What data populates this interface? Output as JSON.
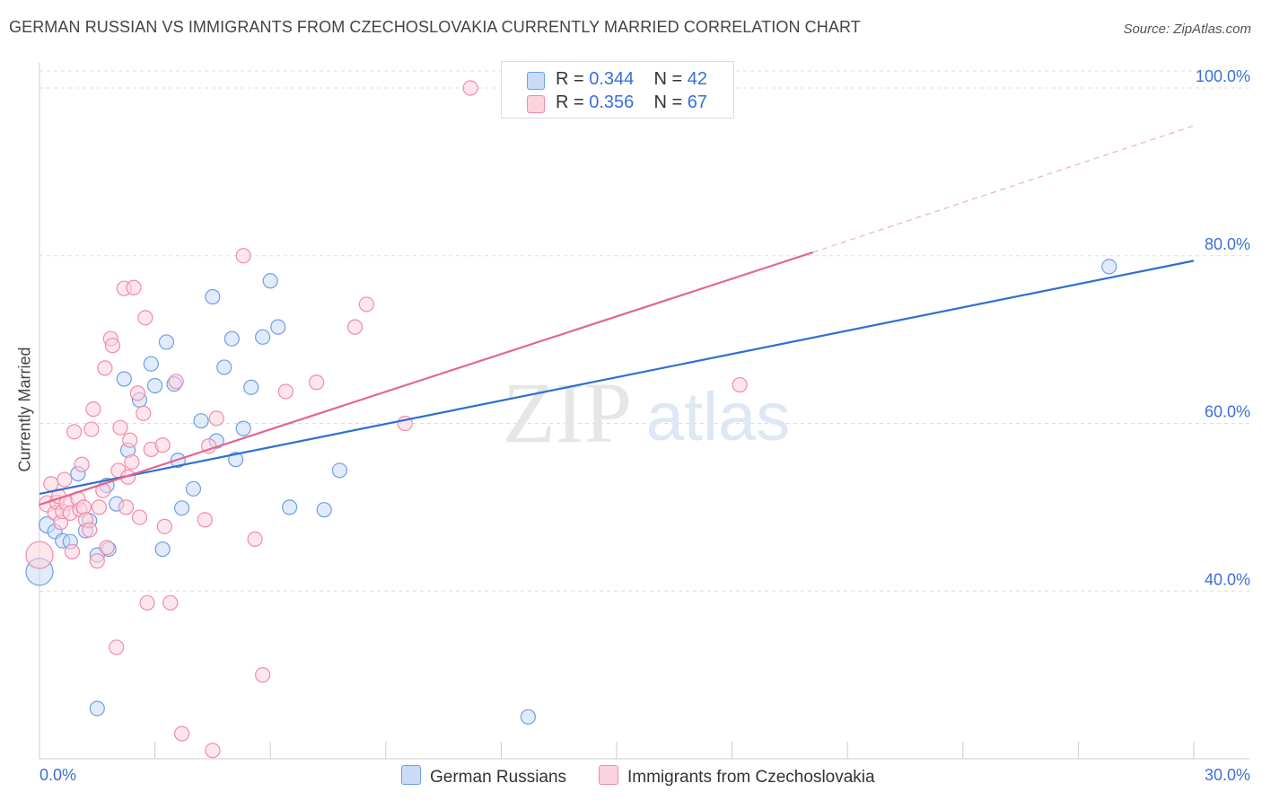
{
  "title": "GERMAN RUSSIAN VS IMMIGRANTS FROM CZECHOSLOVAKIA CURRENTLY MARRIED CORRELATION CHART",
  "source": "Source: ZipAtlas.com",
  "legend": {
    "r_label": "R = ",
    "n_label": "N = ",
    "rows": [
      {
        "r": "0.344",
        "n": "42"
      },
      {
        "r": "0.356",
        "n": "67"
      }
    ]
  },
  "bottom_legend": [
    "German Russians",
    "Immigrants from Czechoslovakia"
  ],
  "watermark": {
    "zip": "ZIP",
    "atlas": "atlas"
  },
  "chart_data": {
    "type": "scatter",
    "title": "GERMAN RUSSIAN VS IMMIGRANTS FROM CZECHOSLOVAKIA CURRENTLY MARRIED CORRELATION CHART",
    "xlabel": "",
    "ylabel": "Currently Married",
    "xlim": [
      0,
      30
    ],
    "ylim": [
      20,
      103
    ],
    "x_tick_labels": [
      {
        "value": 0,
        "label": "0.0%"
      },
      {
        "value": 30,
        "label": "30.0%"
      }
    ],
    "y_tick_labels": [
      {
        "value": 40,
        "label": "40.0%"
      },
      {
        "value": 60,
        "label": "60.0%"
      },
      {
        "value": 80,
        "label": "80.0%"
      },
      {
        "value": 100,
        "label": "100.0%"
      }
    ],
    "series": [
      {
        "name": "German Russians",
        "color": "#6f9ee6",
        "fill": "#c9dbf6",
        "trend": {
          "x0": 0,
          "y0": 51.6,
          "x1": 30,
          "y1": 79.4,
          "dashed_from": null
        },
        "points": [
          [
            0.0,
            42.3,
            15
          ],
          [
            0.2,
            47.9,
            9
          ],
          [
            0.4,
            47.1,
            8
          ],
          [
            0.6,
            46.0,
            8
          ],
          [
            0.8,
            45.9,
            8
          ],
          [
            1.0,
            54.0,
            8
          ],
          [
            1.2,
            47.2,
            8
          ],
          [
            1.3,
            48.4,
            8
          ],
          [
            1.5,
            44.3,
            8
          ],
          [
            1.8,
            45.0,
            8
          ],
          [
            1.5,
            26.0,
            8
          ],
          [
            1.75,
            52.6,
            8
          ],
          [
            2.0,
            50.4,
            8
          ],
          [
            2.2,
            65.3,
            8
          ],
          [
            2.3,
            56.8,
            8
          ],
          [
            2.6,
            62.8,
            8
          ],
          [
            2.9,
            67.1,
            8
          ],
          [
            3.0,
            64.5,
            8
          ],
          [
            3.2,
            45.0,
            8
          ],
          [
            3.3,
            69.7,
            8
          ],
          [
            3.5,
            64.7,
            8
          ],
          [
            3.6,
            55.6,
            8
          ],
          [
            3.7,
            49.9,
            8
          ],
          [
            4.0,
            52.2,
            8
          ],
          [
            4.2,
            60.3,
            8
          ],
          [
            4.5,
            75.1,
            8
          ],
          [
            4.6,
            57.9,
            8
          ],
          [
            4.8,
            66.7,
            8
          ],
          [
            5.0,
            70.1,
            8
          ],
          [
            5.1,
            55.7,
            8
          ],
          [
            5.3,
            59.4,
            8
          ],
          [
            5.5,
            64.3,
            8
          ],
          [
            5.8,
            70.3,
            8
          ],
          [
            6.0,
            77.0,
            8
          ],
          [
            6.2,
            71.5,
            8
          ],
          [
            6.5,
            50.0,
            8
          ],
          [
            7.4,
            49.7,
            8
          ],
          [
            7.8,
            54.4,
            8
          ],
          [
            12.7,
            25.0,
            8
          ],
          [
            27.8,
            78.7,
            8
          ]
        ]
      },
      {
        "name": "Immigrants from Czechoslovakia",
        "color": "#f08bab",
        "fill": "#fbd3de",
        "trend": {
          "x0": 0,
          "y0": 50.3,
          "x1": 20.1,
          "y1": 80.4,
          "dashed_from": 20.1,
          "dashed_to_x": 30,
          "dashed_to_y": 95.5
        },
        "points": [
          [
            0.0,
            44.3,
            15
          ],
          [
            0.2,
            50.4,
            9
          ],
          [
            0.3,
            52.8,
            8
          ],
          [
            0.4,
            49.3,
            8
          ],
          [
            0.45,
            50.6,
            8
          ],
          [
            0.5,
            51.3,
            8
          ],
          [
            0.55,
            48.2,
            8
          ],
          [
            0.6,
            49.5,
            8
          ],
          [
            0.65,
            53.3,
            8
          ],
          [
            0.7,
            50.5,
            8
          ],
          [
            0.8,
            49.3,
            8
          ],
          [
            0.85,
            44.7,
            8
          ],
          [
            0.9,
            59.0,
            8
          ],
          [
            1.0,
            51.0,
            8
          ],
          [
            1.05,
            49.7,
            8
          ],
          [
            1.1,
            55.1,
            8
          ],
          [
            1.15,
            50.0,
            8
          ],
          [
            1.2,
            48.5,
            8
          ],
          [
            1.3,
            47.3,
            8
          ],
          [
            1.35,
            59.3,
            8
          ],
          [
            1.4,
            61.7,
            8
          ],
          [
            1.5,
            43.6,
            8
          ],
          [
            1.55,
            50.0,
            8
          ],
          [
            1.65,
            52.0,
            8
          ],
          [
            1.7,
            66.6,
            8
          ],
          [
            1.75,
            45.2,
            8
          ],
          [
            1.85,
            70.1,
            8
          ],
          [
            1.9,
            69.3,
            8
          ],
          [
            2.0,
            33.3,
            8
          ],
          [
            2.05,
            54.4,
            8
          ],
          [
            2.1,
            59.5,
            8
          ],
          [
            2.2,
            76.1,
            8
          ],
          [
            2.25,
            50.0,
            8
          ],
          [
            2.3,
            53.6,
            8
          ],
          [
            2.35,
            58.0,
            8
          ],
          [
            2.4,
            55.4,
            8
          ],
          [
            2.45,
            76.2,
            8
          ],
          [
            2.55,
            63.6,
            8
          ],
          [
            2.6,
            48.8,
            8
          ],
          [
            2.7,
            61.2,
            8
          ],
          [
            2.75,
            72.6,
            8
          ],
          [
            2.8,
            38.6,
            8
          ],
          [
            2.9,
            56.9,
            8
          ],
          [
            3.2,
            57.4,
            8
          ],
          [
            3.25,
            47.7,
            8
          ],
          [
            3.4,
            38.6,
            8
          ],
          [
            3.55,
            65.0,
            8
          ],
          [
            3.7,
            23.0,
            8
          ],
          [
            4.3,
            48.5,
            8
          ],
          [
            4.4,
            57.3,
            8
          ],
          [
            4.5,
            21.0,
            8
          ],
          [
            4.6,
            60.6,
            8
          ],
          [
            5.3,
            80.0,
            8
          ],
          [
            5.6,
            46.2,
            8
          ],
          [
            5.8,
            30.0,
            8
          ],
          [
            6.4,
            63.8,
            8
          ],
          [
            7.2,
            64.9,
            8
          ],
          [
            8.2,
            71.5,
            8
          ],
          [
            8.5,
            74.2,
            8
          ],
          [
            9.5,
            60.0,
            8
          ],
          [
            11.2,
            100.0,
            8
          ],
          [
            18.2,
            64.6,
            8
          ]
        ]
      }
    ]
  }
}
